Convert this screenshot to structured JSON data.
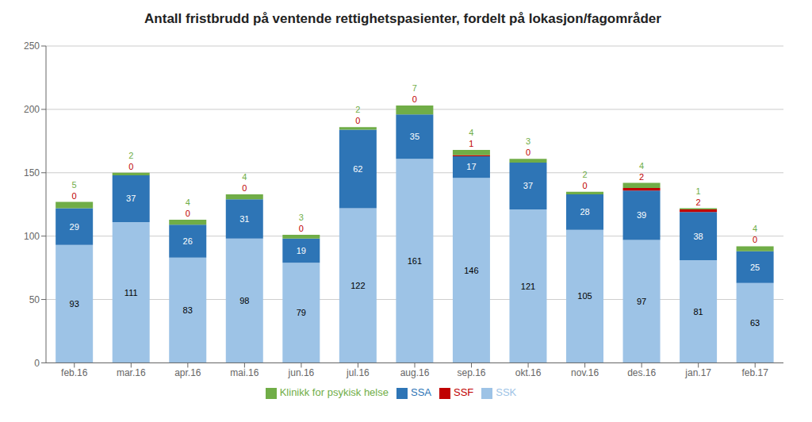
{
  "chart_data": {
    "type": "bar",
    "title": "Antall fristbrudd på ventende rettighetspasienter, fordelt på lokasjon/fagområder",
    "categories": [
      "feb.16",
      "mar.16",
      "apr.16",
      "mai.16",
      "jun.16",
      "jul.16",
      "aug.16",
      "sep.16",
      "okt.16",
      "nov.16",
      "des.16",
      "jan.17",
      "feb.17"
    ],
    "series": [
      {
        "name": "SSK",
        "color": "#9DC3E6",
        "values": [
          93,
          111,
          83,
          98,
          79,
          122,
          161,
          146,
          121,
          105,
          97,
          81,
          63
        ]
      },
      {
        "name": "SSA",
        "color": "#2E75B6",
        "values": [
          29,
          37,
          26,
          31,
          19,
          62,
          35,
          17,
          37,
          28,
          39,
          38,
          25
        ]
      },
      {
        "name": "SSF",
        "color": "#C00000",
        "values": [
          0,
          0,
          0,
          0,
          0,
          0,
          0,
          1,
          0,
          0,
          2,
          2,
          0
        ]
      },
      {
        "name": "Klinikk for psykisk helse",
        "color": "#70AD47",
        "values": [
          5,
          2,
          4,
          4,
          3,
          2,
          7,
          4,
          3,
          2,
          4,
          1,
          4
        ]
      }
    ],
    "stacked": true,
    "ylim": [
      0,
      250
    ],
    "yticks": [
      0,
      50,
      100,
      150,
      200,
      250
    ],
    "grid": true,
    "legend": "bottom",
    "data_labels": true
  }
}
